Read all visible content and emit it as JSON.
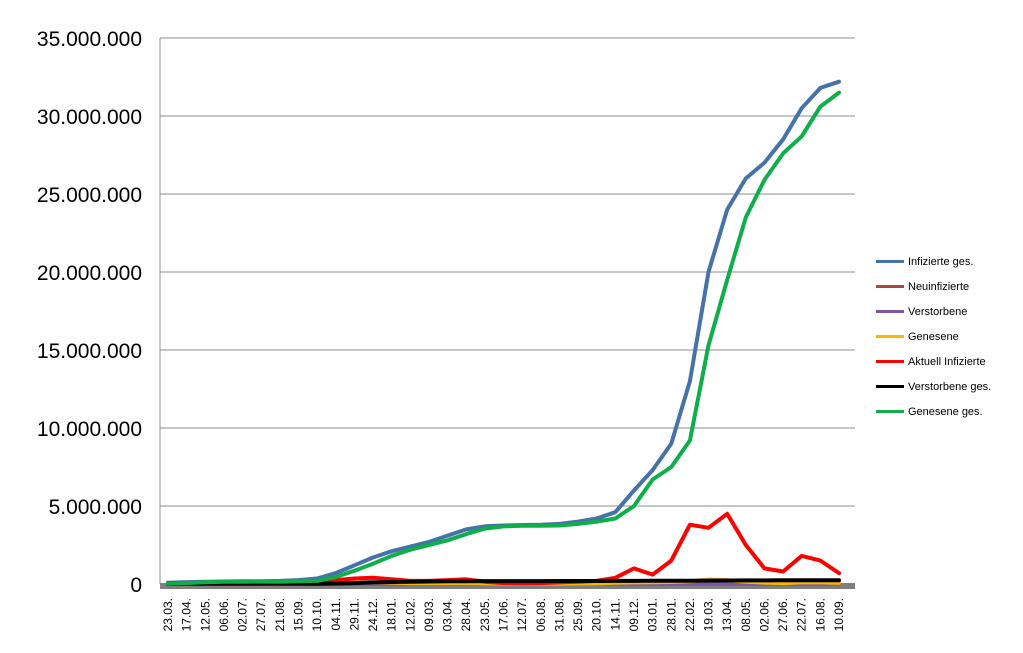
{
  "chart_data": {
    "type": "line",
    "title": "",
    "xlabel": "",
    "ylabel": "",
    "ylim": [
      0,
      35000000
    ],
    "yticks": [
      0,
      5000000,
      10000000,
      15000000,
      20000000,
      25000000,
      30000000,
      35000000
    ],
    "ytick_labels": [
      "0",
      "5.000.000",
      "10.000.000",
      "15.000.000",
      "20.000.000",
      "25.000.000",
      "30.000.000",
      "35.000.000"
    ],
    "grid": "horizontal",
    "legend_position": "right",
    "categories": [
      "23.03.",
      "17.04.",
      "12.05.",
      "06.06.",
      "02.07.",
      "27.07.",
      "21.08.",
      "15.09.",
      "10.10.",
      "04.11.",
      "29.11.",
      "24.12.",
      "18.01.",
      "12.02.",
      "09.03.",
      "03.04.",
      "28.04.",
      "23.05.",
      "17.06.",
      "12.07.",
      "06.08.",
      "31.08.",
      "25.09.",
      "20.10.",
      "14.11.",
      "09.12.",
      "03.01.",
      "28.01.",
      "22.02.",
      "19.03.",
      "13.04.",
      "08.05.",
      "02.06.",
      "27.06.",
      "22.07.",
      "16.08.",
      "10.09."
    ],
    "series": [
      {
        "name": "Infizierte ges.",
        "color": "#4572a7",
        "values": [
          80000,
          120000,
          140000,
          160000,
          170000,
          180000,
          200000,
          250000,
          350000,
          700000,
          1200000,
          1700000,
          2100000,
          2400000,
          2700000,
          3100000,
          3500000,
          3700000,
          3750000,
          3780000,
          3800000,
          3850000,
          4000000,
          4200000,
          4600000,
          6000000,
          7300000,
          9000000,
          13000000,
          20000000,
          24000000,
          26000000,
          27000000,
          28500000,
          30500000,
          31800000,
          32200000
        ]
      },
      {
        "name": "Neuinfizierte",
        "color": "#aa4643",
        "values": [
          20000,
          15000,
          8000,
          5000,
          5000,
          6000,
          10000,
          20000,
          60000,
          100000,
          120000,
          110000,
          80000,
          50000,
          60000,
          80000,
          60000,
          20000,
          8000,
          10000,
          20000,
          25000,
          40000,
          60000,
          90000,
          120000,
          90000,
          120000,
          150000,
          180000,
          200000,
          120000,
          60000,
          100000,
          120000,
          80000,
          40000
        ]
      },
      {
        "name": "Verstorbene",
        "color": "#7f56a6",
        "values": [
          200,
          300,
          150,
          100,
          80,
          80,
          100,
          150,
          500,
          1500,
          2500,
          3000,
          2500,
          1800,
          1500,
          1500,
          1200,
          600,
          200,
          150,
          150,
          200,
          300,
          500,
          1000,
          1500,
          1200,
          2000,
          2500,
          3000,
          2800,
          1500,
          800,
          600,
          800,
          700,
          400
        ]
      },
      {
        "name": "Genesene",
        "color": "#f6b800",
        "values": [
          10000,
          15000,
          10000,
          6000,
          5000,
          5000,
          8000,
          15000,
          40000,
          80000,
          100000,
          100000,
          90000,
          60000,
          50000,
          60000,
          60000,
          40000,
          15000,
          10000,
          15000,
          20000,
          30000,
          40000,
          80000,
          100000,
          110000,
          130000,
          180000,
          280000,
          250000,
          150000,
          90000,
          60000,
          100000,
          100000,
          70000
        ]
      },
      {
        "name": "Aktuell Infizierte",
        "color": "#ff0000",
        "values": [
          60000,
          60000,
          30000,
          20000,
          20000,
          25000,
          50000,
          80000,
          150000,
          250000,
          350000,
          400000,
          300000,
          200000,
          200000,
          250000,
          300000,
          150000,
          60000,
          50000,
          60000,
          100000,
          150000,
          200000,
          400000,
          1000000,
          600000,
          1500000,
          3800000,
          3600000,
          4500000,
          2500000,
          1000000,
          800000,
          1800000,
          1500000,
          700000
        ]
      },
      {
        "name": "Verstorbene ges.",
        "color": "#000000",
        "values": [
          2000,
          8000,
          10000,
          11000,
          11000,
          11000,
          11500,
          12000,
          15000,
          30000,
          60000,
          100000,
          130000,
          150000,
          160000,
          170000,
          180000,
          185000,
          187000,
          188000,
          189000,
          190000,
          191000,
          193000,
          197000,
          200000,
          203000,
          206000,
          211000,
          217000,
          224000,
          230000,
          233000,
          235000,
          237000,
          240000,
          242000
        ]
      },
      {
        "name": "Genesene ges.",
        "color": "#0fae4a",
        "values": [
          20000,
          60000,
          110000,
          140000,
          150000,
          155000,
          150000,
          170000,
          200000,
          450000,
          850000,
          1300000,
          1800000,
          2200000,
          2500000,
          2800000,
          3200000,
          3550000,
          3690000,
          3730000,
          3740000,
          3750000,
          3850000,
          4000000,
          4200000,
          5000000,
          6700000,
          7500000,
          9200000,
          15300000,
          19500000,
          23500000,
          25900000,
          27600000,
          28700000,
          30600000,
          31500000
        ]
      }
    ]
  }
}
